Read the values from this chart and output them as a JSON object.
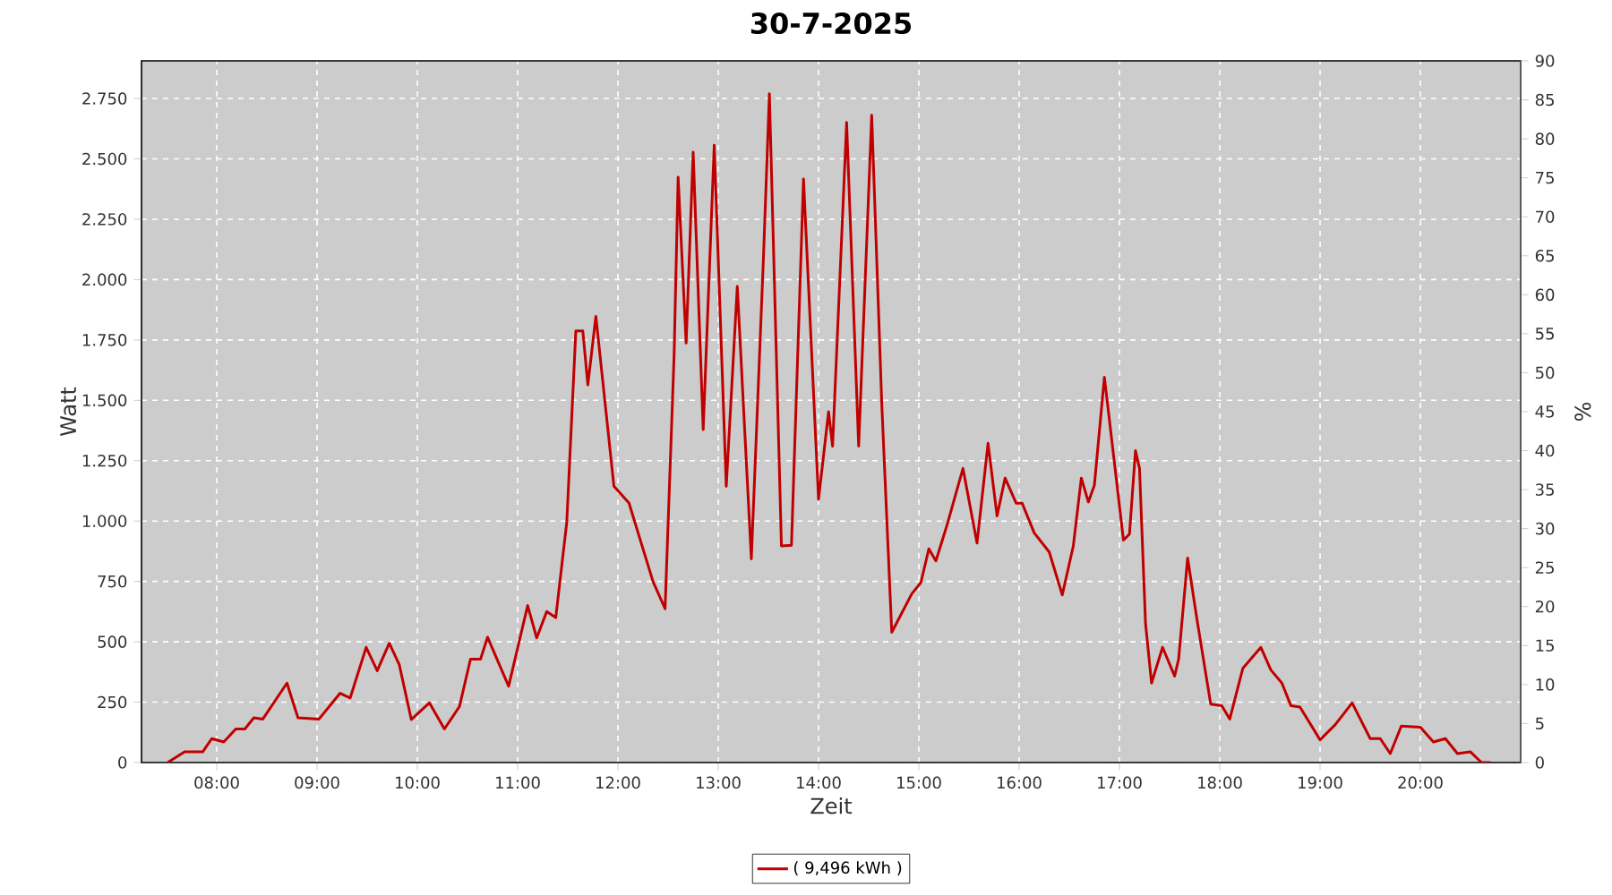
{
  "chart_data": {
    "type": "line",
    "title": "30-7-2025",
    "xlabel": "Zeit",
    "ylabel": "Watt",
    "y2label": "%",
    "xlim": [
      7.25,
      21.0
    ],
    "xticks": [
      {
        "value": 8,
        "label": "08:00"
      },
      {
        "value": 9,
        "label": "09:00"
      },
      {
        "value": 10,
        "label": "10:00"
      },
      {
        "value": 11,
        "label": "11:00"
      },
      {
        "value": 12,
        "label": "12:00"
      },
      {
        "value": 13,
        "label": "13:00"
      },
      {
        "value": 14,
        "label": "14:00"
      },
      {
        "value": 15,
        "label": "15:00"
      },
      {
        "value": 16,
        "label": "16:00"
      },
      {
        "value": 17,
        "label": "17:00"
      },
      {
        "value": 18,
        "label": "18:00"
      },
      {
        "value": 19,
        "label": "19:00"
      },
      {
        "value": 20,
        "label": "20:00"
      }
    ],
    "ylim": [
      0,
      2906
    ],
    "yticks": [
      0,
      250,
      500,
      750,
      {
        "value": 1000,
        "label": "1.000"
      },
      {
        "value": 1250,
        "label": "1.250"
      },
      {
        "value": 1500,
        "label": "1.500"
      },
      {
        "value": 1750,
        "label": "1.750"
      },
      {
        "value": 2000,
        "label": "2.000"
      },
      {
        "value": 2250,
        "label": "2.250"
      },
      {
        "value": 2500,
        "label": "2.500"
      },
      {
        "value": 2750,
        "label": "2.750"
      }
    ],
    "y2lim": [
      0,
      90
    ],
    "y2ticks": [
      0,
      5,
      10,
      15,
      20,
      25,
      30,
      35,
      40,
      45,
      50,
      55,
      60,
      65,
      70,
      75,
      80,
      85,
      90
    ],
    "grid": true,
    "legend": "bottom",
    "marker": "none",
    "line_style": "solid",
    "series": [
      {
        "name": "( 9,496 kWh )",
        "color": "#c00000",
        "x": [
          7.51,
          7.68,
          7.86,
          7.95,
          8.07,
          8.19,
          8.28,
          8.37,
          8.46,
          8.7,
          8.81,
          9.02,
          9.23,
          9.33,
          9.49,
          9.6,
          9.72,
          9.82,
          9.94,
          10.12,
          10.27,
          10.42,
          10.53,
          10.63,
          10.7,
          10.91,
          11.1,
          11.19,
          11.29,
          11.38,
          11.49,
          11.58,
          11.65,
          11.7,
          11.78,
          11.96,
          12.11,
          12.35,
          12.47,
          12.56,
          12.6,
          12.68,
          12.75,
          12.85,
          12.96,
          13.08,
          13.19,
          13.33,
          13.45,
          13.51,
          13.63,
          13.73,
          13.85,
          14.0,
          14.1,
          14.14,
          14.28,
          14.4,
          14.53,
          14.63,
          14.73,
          14.93,
          15.02,
          15.1,
          15.17,
          15.28,
          15.44,
          15.58,
          15.69,
          15.78,
          15.86,
          15.97,
          16.03,
          16.15,
          16.3,
          16.43,
          16.54,
          16.62,
          16.69,
          16.75,
          16.85,
          17.04,
          17.1,
          17.16,
          17.2,
          17.26,
          17.32,
          17.43,
          17.55,
          17.59,
          17.68,
          17.77,
          17.91,
          18.02,
          18.1,
          18.23,
          18.41,
          18.51,
          18.62,
          18.71,
          18.8,
          19.0,
          19.15,
          19.32,
          19.5,
          19.6,
          19.7,
          19.81,
          20.0,
          20.13,
          20.25,
          20.37,
          20.5,
          20.61,
          20.7
        ],
        "values": [
          0,
          44,
          44,
          99,
          85,
          139,
          139,
          185,
          180,
          329,
          185,
          180,
          287,
          267,
          477,
          380,
          494,
          405,
          178,
          247,
          139,
          232,
          428,
          428,
          519,
          316,
          650,
          516,
          625,
          600,
          996,
          1787,
          1787,
          1564,
          1848,
          1144,
          1075,
          749,
          637,
          1688,
          2424,
          1737,
          2528,
          1379,
          2557,
          1144,
          1972,
          843,
          2083,
          2770,
          897,
          900,
          2417,
          1090,
          1453,
          1310,
          2651,
          1310,
          2681,
          1490,
          539,
          699,
          745,
          885,
          835,
          982,
          1218,
          909,
          1322,
          1021,
          1178,
          1074,
          1074,
          951,
          872,
          694,
          897,
          1178,
          1079,
          1148,
          1596,
          921,
          946,
          1292,
          1218,
          576,
          329,
          477,
          358,
          428,
          847,
          600,
          242,
          235,
          180,
          390,
          477,
          383,
          329,
          235,
          230,
          94,
          156,
          247,
          99,
          99,
          37,
          151,
          146,
          85,
          99,
          37,
          44,
          0,
          0
        ]
      }
    ]
  }
}
